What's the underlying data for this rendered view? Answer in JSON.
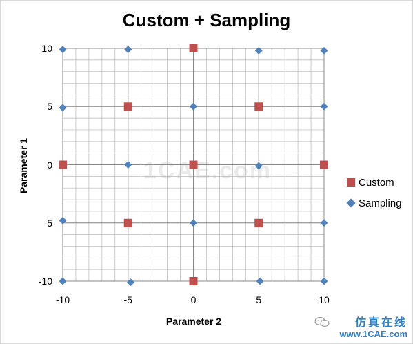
{
  "chart_data": {
    "type": "scatter",
    "title": "Custom + Sampling",
    "xlabel": "Parameter 2",
    "ylabel": "Parameter 1",
    "xlim": [
      -10,
      10
    ],
    "ylim": [
      -10,
      10
    ],
    "x_ticks": [
      "-10",
      "-5",
      "0",
      "5",
      "10"
    ],
    "y_ticks": [
      "10",
      "5",
      "0",
      "-5",
      "-10"
    ],
    "grid": "on",
    "legend_position": "right",
    "series": [
      {
        "name": "Custom",
        "marker": "square",
        "color": "#c0504d",
        "points": [
          {
            "x": 0,
            "y": 10
          },
          {
            "x": -5,
            "y": 5
          },
          {
            "x": 5,
            "y": 5
          },
          {
            "x": -10,
            "y": 0
          },
          {
            "x": 0,
            "y": 0
          },
          {
            "x": 10,
            "y": 0
          },
          {
            "x": -5,
            "y": -5
          },
          {
            "x": 5,
            "y": -5
          },
          {
            "x": 0,
            "y": -10
          }
        ]
      },
      {
        "name": "Sampling",
        "marker": "diamond",
        "color": "#4f81bd",
        "points": [
          {
            "x": -10,
            "y": 9.9
          },
          {
            "x": -5,
            "y": 9.9
          },
          {
            "x": 5,
            "y": 9.8
          },
          {
            "x": 10,
            "y": 9.8
          },
          {
            "x": -10,
            "y": 4.9
          },
          {
            "x": 0,
            "y": 5
          },
          {
            "x": 10,
            "y": 5
          },
          {
            "x": -5,
            "y": 0
          },
          {
            "x": 5,
            "y": -0.1
          },
          {
            "x": -10,
            "y": -4.8
          },
          {
            "x": 0,
            "y": -5
          },
          {
            "x": 10,
            "y": -5
          },
          {
            "x": -10,
            "y": -10
          },
          {
            "x": -4.8,
            "y": -10.1
          },
          {
            "x": 5.1,
            "y": -10
          },
          {
            "x": 10,
            "y": -10
          }
        ]
      }
    ]
  },
  "watermark": {
    "logo_text": "1CAE.com",
    "footer_chinese": "仿真在线",
    "footer_url": "www.1CAE.com"
  }
}
